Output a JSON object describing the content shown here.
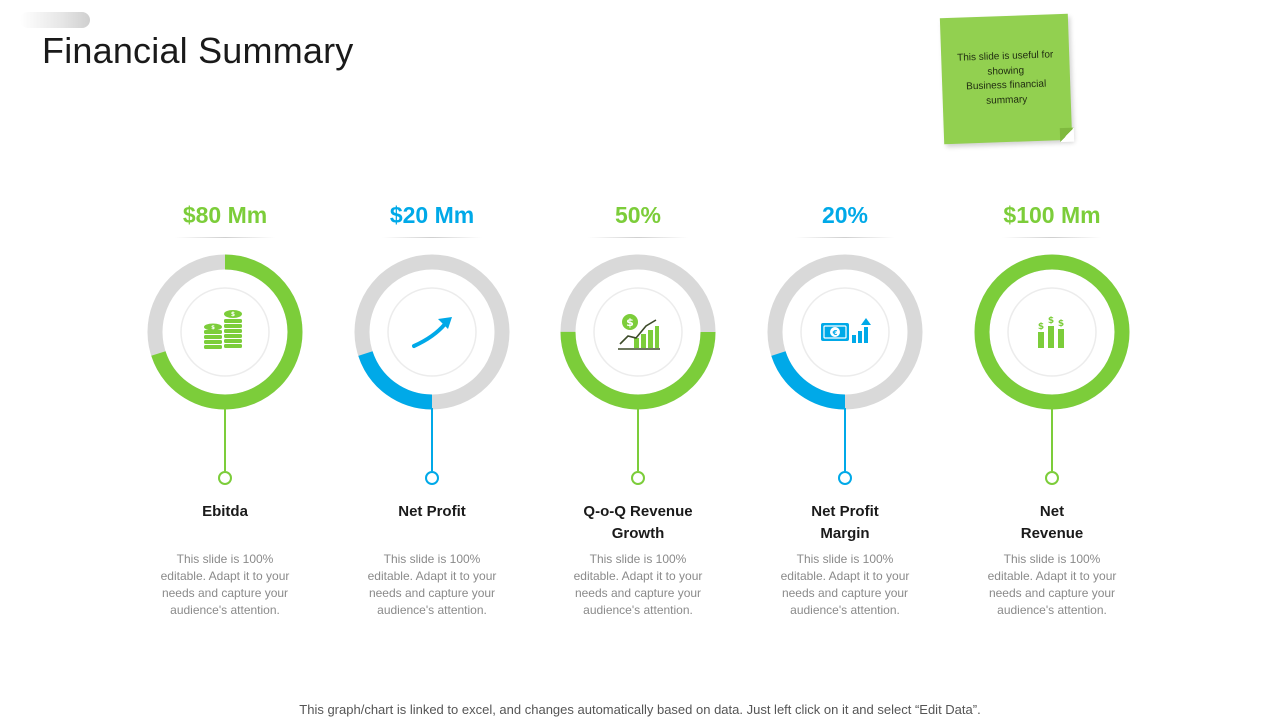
{
  "title": "Financial Summary",
  "note": "This slide is useful for showing\nBusiness financial summary",
  "colors": {
    "green": "#7ccd3a",
    "blue": "#00a9e8",
    "track": "#d9d9d9"
  },
  "cards": [
    {
      "value": "$80 Mm",
      "label": "Ebitda",
      "accent": "green",
      "ring_fraction": 0.7,
      "icon": "coins-stack-icon",
      "desc": "This slide is 100% editable. Adapt it to your needs and capture your audience's attention."
    },
    {
      "value": "$20 Mm",
      "label": "Net Profit",
      "accent": "blue",
      "ring_fraction": 0.2,
      "icon": "growth-arrow-icon",
      "desc": "This slide is 100% editable. Adapt it to your needs and capture your audience's attention."
    },
    {
      "value": "50%",
      "label": "Q-o-Q Revenue\nGrowth",
      "accent": "green",
      "ring_fraction": 0.5,
      "icon": "dollar-growth-chart-icon",
      "desc": "This slide is 100% editable. Adapt it to your needs and capture your audience's attention."
    },
    {
      "value": "20%",
      "label": "Net Profit\nMargin",
      "accent": "blue",
      "ring_fraction": 0.2,
      "icon": "banknote-chart-icon",
      "desc": "This slide is 100% editable. Adapt it to your needs and capture your audience's attention."
    },
    {
      "value": "$100 Mm",
      "label": "Net\nRevenue",
      "accent": "green",
      "ring_fraction": 1.0,
      "icon": "dollar-bars-icon",
      "desc": "This slide is 100% editable. Adapt it to your needs and capture your audience's attention."
    }
  ],
  "footer": "This graph/chart is linked to excel, and changes automatically based on data.  Just left click on it and select “Edit Data”."
}
